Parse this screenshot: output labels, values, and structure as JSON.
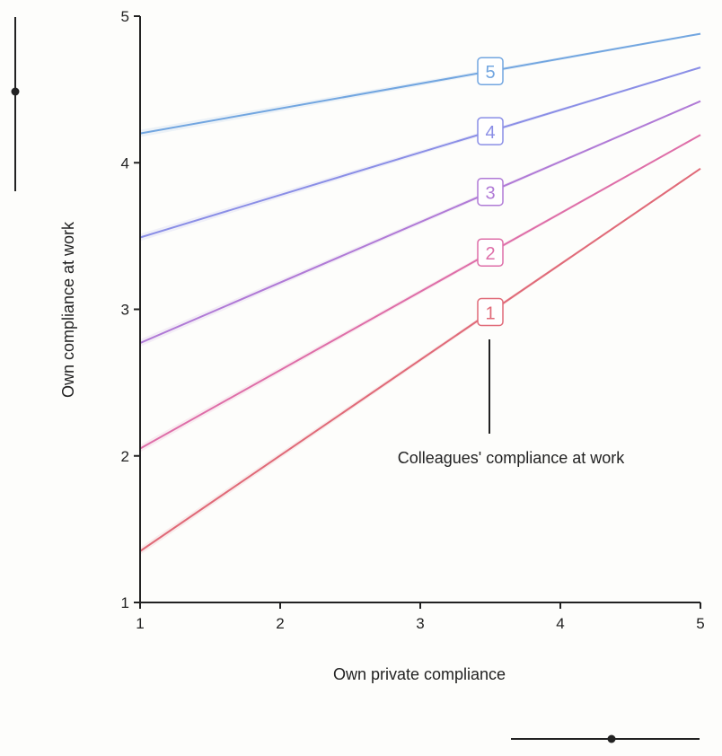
{
  "chart_data": {
    "type": "line",
    "xlabel": "Own private compliance",
    "ylabel": "Own compliance at work",
    "xlim": [
      1,
      5
    ],
    "ylim": [
      1,
      5
    ],
    "xticks": [
      "1",
      "2",
      "3",
      "4",
      "5"
    ],
    "yticks": [
      "1",
      "2",
      "3",
      "4",
      "5"
    ],
    "annotation": "Colleagues' compliance at work",
    "label_x": 3.5,
    "series": [
      {
        "label": "1",
        "color": "#e06a78",
        "x": [
          1,
          5
        ],
        "y": [
          1.35,
          3.96
        ]
      },
      {
        "label": "2",
        "color": "#de6ea8",
        "x": [
          1,
          5
        ],
        "y": [
          2.05,
          4.19
        ]
      },
      {
        "label": "3",
        "color": "#b07ad6",
        "x": [
          1,
          5
        ],
        "y": [
          2.77,
          4.42
        ]
      },
      {
        "label": "4",
        "color": "#8a8ee6",
        "x": [
          1,
          5
        ],
        "y": [
          3.49,
          4.65
        ]
      },
      {
        "label": "5",
        "color": "#72a6e0",
        "x": [
          1,
          5
        ],
        "y": [
          4.2,
          4.88
        ]
      }
    ],
    "marginals": {
      "y_point": 4.47,
      "x_point": 4.38
    }
  }
}
